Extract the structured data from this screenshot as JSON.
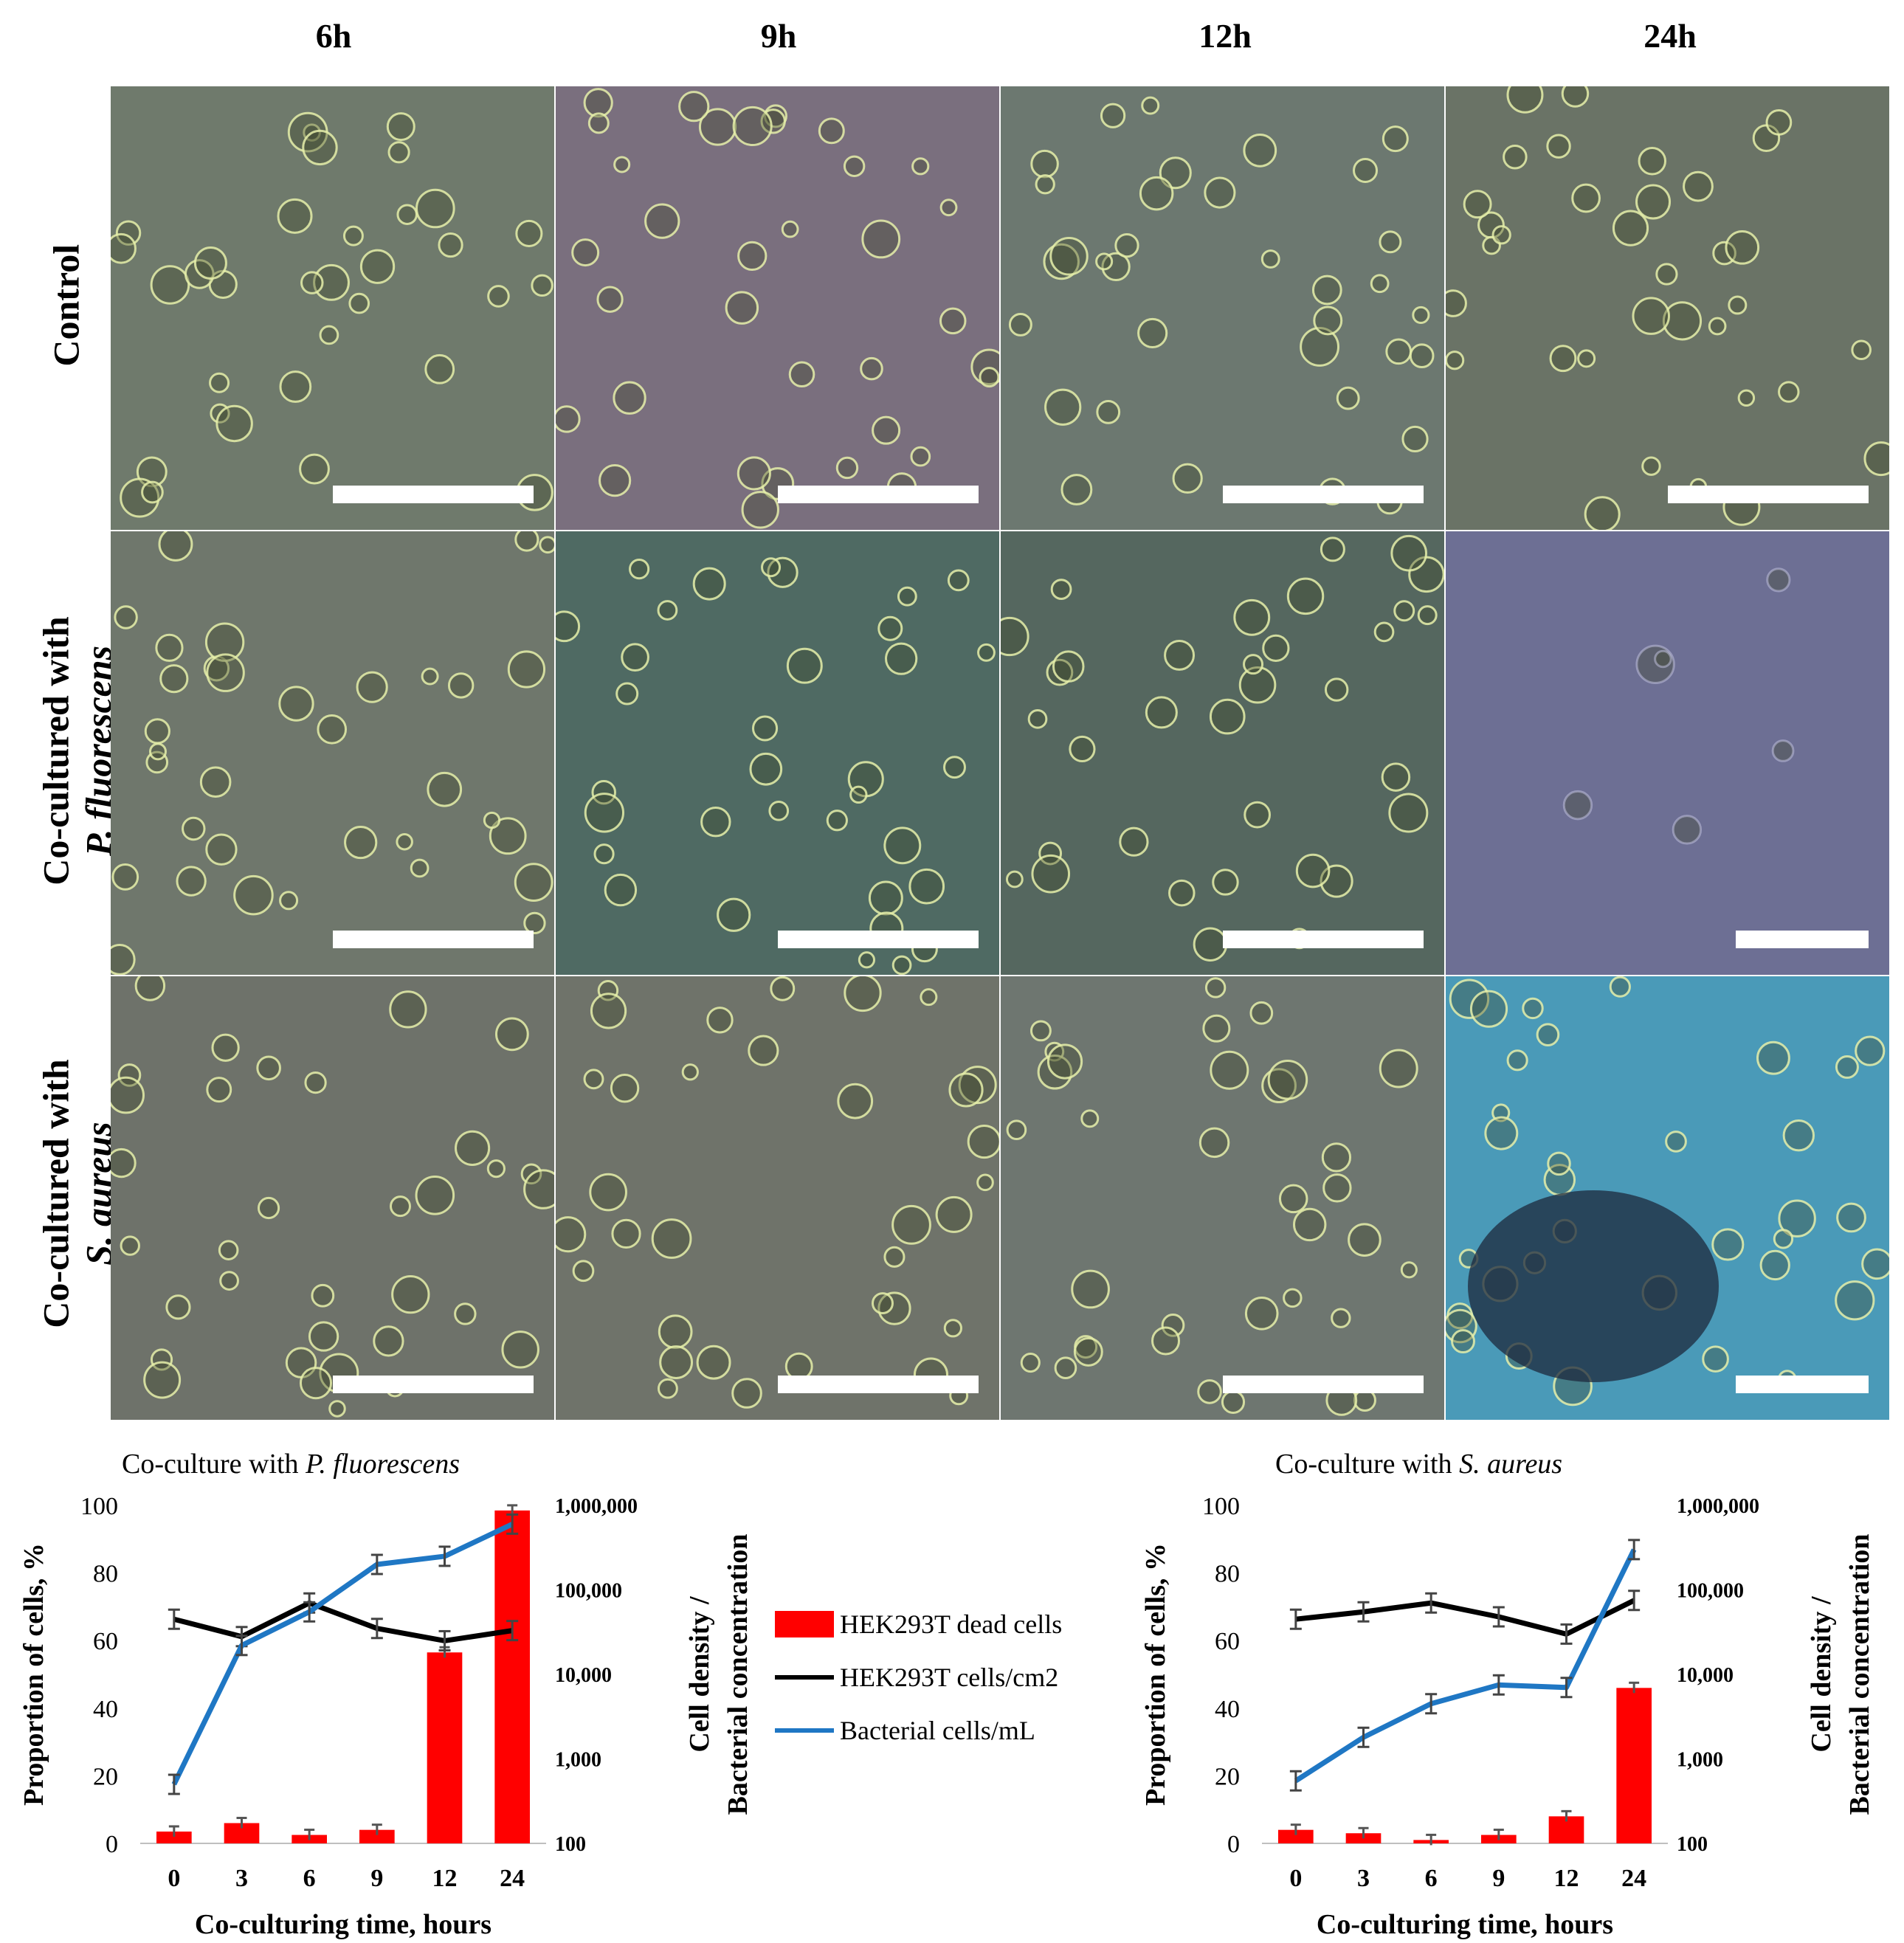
{
  "columns": [
    "6h",
    "9h",
    "12h",
    "24h"
  ],
  "rows": [
    {
      "label": "Control",
      "italic": ""
    },
    {
      "label": "Co-cultured with",
      "italic": "P. fluorescens"
    },
    {
      "label": "Co-cultured with",
      "italic": "S. aureus"
    }
  ],
  "panel_tints": [
    [
      "#6f7a6c",
      "#7a6f7e",
      "#6c7870",
      "#6a7366"
    ],
    [
      "#6f776c",
      "#4f6a63",
      "#55675f",
      "#6d6f94"
    ],
    [
      "#6e726a",
      "#6f736a",
      "#6e7670",
      "#4a9ab8"
    ]
  ],
  "legend": {
    "dead": "HEK293T dead cells",
    "cells": "HEK293T cells/cm2",
    "bact": "Bacterial cells/mL"
  },
  "colors": {
    "dead": "#ff0000",
    "cells": "#000000",
    "bact": "#1f77c4"
  },
  "chart_data": [
    {
      "type": "bar",
      "title_prefix": "Co-culture with ",
      "title_italic": "P. fluorescens",
      "categories": [
        "0",
        "3",
        "6",
        "9",
        "12",
        "24"
      ],
      "xlabel": "Co-culturing time, hours",
      "ylabel": "Proportion of cells, %",
      "y2label_1": "Cell density /",
      "y2label_2": "Bacterial concentration",
      "ylim": [
        0,
        100
      ],
      "yticks": [
        "0",
        "20",
        "40",
        "60",
        "80",
        "100"
      ],
      "y2log": true,
      "y2lim": [
        100,
        1000000
      ],
      "y2ticks": [
        "100",
        "1,000",
        "10,000",
        "100,000",
        "1,000,000"
      ],
      "series": [
        {
          "key": "dead",
          "axis": "left",
          "type": "bar",
          "values": [
            3.5,
            6,
            2.5,
            4,
            56.5,
            98.5
          ]
        },
        {
          "key": "cells",
          "axis": "right",
          "type": "line",
          "values": [
            45000,
            28000,
            70000,
            35000,
            25000,
            33000
          ]
        },
        {
          "key": "bact",
          "axis": "right",
          "type": "line",
          "values": [
            500,
            22000,
            55000,
            200000,
            250000,
            600000
          ]
        }
      ]
    },
    {
      "type": "bar",
      "title_prefix": "Co-culture with ",
      "title_italic": "S. aureus",
      "categories": [
        "0",
        "3",
        "6",
        "9",
        "12",
        "24"
      ],
      "xlabel": "Co-culturing time, hours",
      "ylabel": "Proportion of cells, %",
      "y2label_1": "Cell density /",
      "y2label_2": "Bacterial concentration",
      "ylim": [
        0,
        100
      ],
      "yticks": [
        "0",
        "20",
        "40",
        "60",
        "80",
        "100"
      ],
      "y2log": true,
      "y2lim": [
        100,
        1000000
      ],
      "y2ticks": [
        "100",
        "1,000",
        "10,000",
        "100,000",
        "1,000,000"
      ],
      "series": [
        {
          "key": "dead",
          "axis": "left",
          "type": "bar",
          "values": [
            4,
            3,
            1,
            2.5,
            8,
            46
          ]
        },
        {
          "key": "cells",
          "axis": "right",
          "type": "line",
          "values": [
            45000,
            55000,
            70000,
            48000,
            30000,
            75000
          ]
        },
        {
          "key": "bact",
          "axis": "right",
          "type": "line",
          "values": [
            550,
            1800,
            4500,
            7500,
            7000,
            300000
          ]
        }
      ]
    }
  ]
}
